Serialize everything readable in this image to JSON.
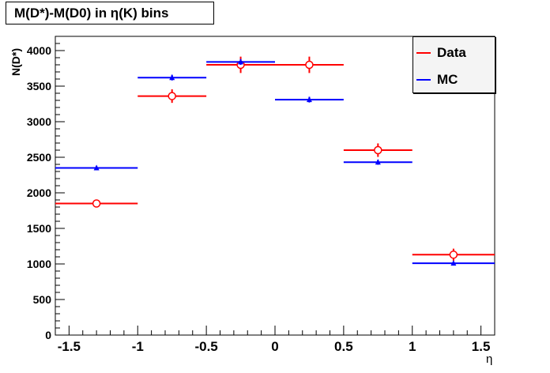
{
  "chart_data": {
    "type": "scatter",
    "title": "M(D*)-M(D0) in η(K) bins",
    "xlabel": "η",
    "ylabel": "N(D*)",
    "xlim": [
      -1.6,
      1.6
    ],
    "ylim": [
      0,
      4200
    ],
    "x_ticks": [
      "-1.5",
      "-1",
      "-0.5",
      "0",
      "0.5",
      "1",
      "1.5"
    ],
    "x_tick_values": [
      -1.5,
      -1,
      -0.5,
      0,
      0.5,
      1,
      1.5
    ],
    "y_ticks": [
      "0",
      "500",
      "1000",
      "1500",
      "2000",
      "2500",
      "3000",
      "3500",
      "4000"
    ],
    "y_tick_values": [
      0,
      500,
      1000,
      1500,
      2000,
      2500,
      3000,
      3500,
      4000
    ],
    "grid": false,
    "legend_position": "top-right",
    "series": [
      {
        "name": "Data",
        "color": "#ff0000",
        "marker": "open-circle",
        "points": [
          {
            "x": -1.3,
            "xlo": -1.6,
            "xhi": -1.0,
            "y": 1850,
            "yerr": 50
          },
          {
            "x": -0.75,
            "xlo": -1.0,
            "xhi": -0.5,
            "y": 3360,
            "yerr": 95
          },
          {
            "x": -0.25,
            "xlo": -0.5,
            "xhi": 0.0,
            "y": 3800,
            "yerr": 115
          },
          {
            "x": 0.25,
            "xlo": 0.0,
            "xhi": 0.5,
            "y": 3800,
            "yerr": 115
          },
          {
            "x": 0.75,
            "xlo": 0.5,
            "xhi": 1.0,
            "y": 2600,
            "yerr": 95
          },
          {
            "x": 1.3,
            "xlo": 1.0,
            "xhi": 1.6,
            "y": 1130,
            "yerr": 85
          }
        ]
      },
      {
        "name": "MC",
        "color": "#0000ff",
        "marker": "filled-triangle",
        "points": [
          {
            "x": -1.3,
            "xlo": -1.6,
            "xhi": -1.0,
            "y": 2350,
            "yerr": 30
          },
          {
            "x": -0.75,
            "xlo": -1.0,
            "xhi": -0.5,
            "y": 3620,
            "yerr": 40
          },
          {
            "x": -0.25,
            "xlo": -0.5,
            "xhi": 0.0,
            "y": 3840,
            "yerr": 40
          },
          {
            "x": 0.25,
            "xlo": 0.0,
            "xhi": 0.5,
            "y": 3310,
            "yerr": 40
          },
          {
            "x": 0.75,
            "xlo": 0.5,
            "xhi": 1.0,
            "y": 2430,
            "yerr": 35
          },
          {
            "x": 1.3,
            "xlo": 1.0,
            "xhi": 1.6,
            "y": 1010,
            "yerr": 25
          }
        ]
      }
    ]
  }
}
